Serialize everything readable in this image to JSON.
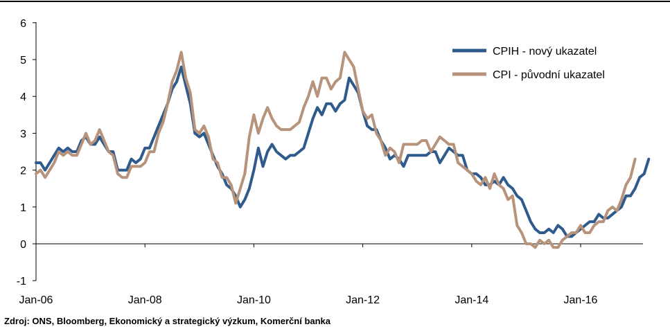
{
  "source_note": "Zdroj: ONS, Bloomberg, Ekonomický a strategický výzkum, Komerční banka",
  "chart_data": {
    "type": "line",
    "title": "",
    "xlabel": "",
    "ylabel": "",
    "x_start": "2006-01",
    "x_frequency": "monthly",
    "x_tick_labels": [
      "Jan-06",
      "Jan-08",
      "Jan-10",
      "Jan-12",
      "Jan-14",
      "Jan-16"
    ],
    "x_tick_dates": [
      "2006-01",
      "2008-01",
      "2010-01",
      "2012-01",
      "2014-01",
      "2016-01"
    ],
    "ylim": [
      -1,
      6
    ],
    "y_ticks": [
      -1,
      0,
      1,
      2,
      3,
      4,
      5,
      6
    ],
    "grid": false,
    "legend": "top-right",
    "series": [
      {
        "name": "CPIH - nový ukazatel",
        "color": "#2e5b8c",
        "values": [
          2.2,
          2.2,
          2.0,
          2.2,
          2.4,
          2.6,
          2.5,
          2.6,
          2.5,
          2.5,
          2.8,
          2.9,
          2.7,
          2.7,
          2.9,
          2.7,
          2.5,
          2.5,
          2.0,
          2.0,
          2.0,
          2.3,
          2.2,
          2.3,
          2.6,
          2.6,
          2.9,
          3.2,
          3.5,
          3.8,
          4.2,
          4.4,
          4.8,
          4.3,
          3.8,
          3.0,
          2.9,
          3.0,
          2.7,
          2.4,
          2.1,
          1.9,
          1.6,
          1.5,
          1.3,
          1.0,
          1.2,
          1.5,
          2.0,
          2.6,
          2.1,
          2.5,
          2.7,
          2.5,
          2.4,
          2.3,
          2.4,
          2.4,
          2.5,
          2.6,
          3.0,
          3.4,
          3.7,
          3.5,
          3.8,
          3.8,
          3.6,
          3.8,
          3.9,
          4.5,
          4.3,
          4.1,
          3.6,
          3.2,
          3.1,
          3.1,
          2.8,
          2.6,
          2.3,
          2.4,
          2.3,
          2.1,
          2.4,
          2.4,
          2.4,
          2.4,
          2.4,
          2.5,
          2.5,
          2.2,
          2.4,
          2.6,
          2.5,
          2.4,
          2.4,
          2.0,
          1.9,
          1.9,
          1.8,
          1.6,
          1.6,
          1.7,
          1.6,
          1.8,
          1.6,
          1.5,
          1.3,
          1.2,
          0.9,
          0.6,
          0.4,
          0.3,
          0.3,
          0.4,
          0.3,
          0.5,
          0.4,
          0.2,
          0.2,
          0.3,
          0.4,
          0.5,
          0.6,
          0.6,
          0.8,
          0.7,
          0.7,
          0.8,
          0.9,
          1.0,
          1.3,
          1.3,
          1.5,
          1.8,
          1.9,
          2.3
        ]
      },
      {
        "name": "CPI - původní ukazatel",
        "color": "#b7937c",
        "values": [
          1.9,
          2.0,
          1.8,
          2.0,
          2.2,
          2.5,
          2.4,
          2.5,
          2.4,
          2.4,
          2.7,
          3.0,
          2.7,
          2.8,
          3.1,
          2.8,
          2.5,
          2.4,
          1.9,
          1.8,
          1.8,
          2.1,
          2.1,
          2.1,
          2.2,
          2.5,
          2.5,
          3.0,
          3.3,
          3.8,
          4.4,
          4.7,
          5.2,
          4.5,
          4.1,
          3.1,
          3.0,
          3.2,
          2.9,
          2.3,
          2.2,
          1.8,
          1.8,
          1.6,
          1.1,
          1.5,
          1.9,
          2.9,
          3.5,
          3.0,
          3.4,
          3.7,
          3.4,
          3.2,
          3.1,
          3.1,
          3.1,
          3.2,
          3.3,
          3.7,
          4.0,
          4.4,
          4.0,
          4.5,
          4.5,
          4.2,
          4.4,
          4.5,
          5.2,
          5.0,
          4.8,
          4.2,
          3.6,
          3.4,
          3.5,
          3.0,
          2.8,
          2.4,
          2.6,
          2.5,
          2.2,
          2.7,
          2.7,
          2.7,
          2.7,
          2.8,
          2.8,
          2.5,
          2.7,
          2.9,
          2.8,
          2.7,
          2.7,
          2.2,
          2.1,
          2.0,
          1.9,
          1.7,
          1.6,
          1.8,
          1.5,
          1.9,
          1.6,
          1.5,
          1.2,
          1.3,
          0.5,
          0.3,
          0.0,
          0.0,
          -0.1,
          0.1,
          0.0,
          0.1,
          -0.1,
          -0.1,
          0.1,
          0.2,
          0.3,
          0.3,
          0.5,
          0.3,
          0.3,
          0.5,
          0.6,
          0.6,
          0.9,
          1.0,
          0.9,
          1.2,
          1.6,
          1.8,
          2.3
        ]
      }
    ]
  }
}
